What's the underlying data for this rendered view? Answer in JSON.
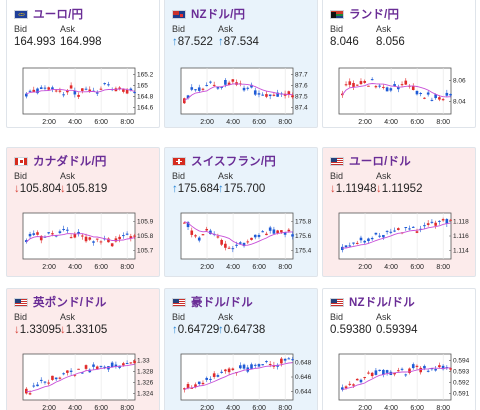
{
  "cards": [
    {
      "id": "eurjpy",
      "name": "ユーロ/円",
      "flag": "eu",
      "bid": "164.993",
      "ask": "164.998",
      "dir": "none",
      "bg": "neutral",
      "yticks": [
        "165.2",
        "165",
        "164.8",
        "164.6"
      ],
      "xticks": [
        "2:00",
        "4:00",
        "6:00",
        "8:00"
      ]
    },
    {
      "id": "nzdjpy",
      "name": "NZドル/円",
      "flag": "nz",
      "bid": "87.522",
      "ask": "87.534",
      "dir": "up",
      "bg": "up",
      "yticks": [
        "87.7",
        "87.6",
        "87.5",
        "87.4"
      ],
      "xticks": [
        "2:00",
        "4:00",
        "6:00",
        "8:00"
      ]
    },
    {
      "id": "zarjpy",
      "name": "ランド/円",
      "flag": "za",
      "bid": "8.046",
      "ask": "8.056",
      "dir": "none",
      "bg": "neutral",
      "yticks": [
        "8.06",
        "8.04"
      ],
      "xticks": [
        "2:00",
        "4:00",
        "6:00",
        "8:00"
      ]
    },
    {
      "id": "cadjpy",
      "name": "カナダドル/円",
      "flag": "ca",
      "bid": "105.804",
      "ask": "105.819",
      "dir": "down",
      "bg": "down",
      "yticks": [
        "105.9",
        "105.8",
        "105.7"
      ],
      "xticks": [
        "2:00",
        "4:00",
        "6:00",
        "8:00"
      ]
    },
    {
      "id": "chfjpy",
      "name": "スイスフラン/円",
      "flag": "ch",
      "bid": "175.684",
      "ask": "175.700",
      "dir": "up",
      "bg": "up",
      "yticks": [
        "175.8",
        "175.6",
        "175.4"
      ],
      "xticks": [
        "2:00",
        "4:00",
        "6:00",
        "8:00"
      ]
    },
    {
      "id": "eurusd",
      "name": "ユーロ/ドル",
      "flag": "us",
      "bid": "1.11948",
      "ask": "1.11952",
      "dir": "down",
      "bg": "down",
      "yticks": [
        "1.118",
        "1.116",
        "1.114"
      ],
      "xticks": [
        "2:00",
        "4:00",
        "6:00",
        "8:00"
      ]
    },
    {
      "id": "gbpusd",
      "name": "英ポンド/ドル",
      "flag": "us",
      "bid": "1.33095",
      "ask": "1.33105",
      "dir": "down",
      "bg": "down",
      "yticks": [
        "1.33",
        "1.328",
        "1.326",
        "1.324"
      ],
      "xticks": [
        "2:00",
        "4:00",
        "6:00",
        "8:00"
      ]
    },
    {
      "id": "audusd",
      "name": "豪ドル/ドル",
      "flag": "us",
      "bid": "0.64729",
      "ask": "0.64738",
      "dir": "up",
      "bg": "up",
      "yticks": [
        "0.648",
        "0.646",
        "0.644"
      ],
      "xticks": [
        "2:00",
        "4:00",
        "6:00",
        "8:00"
      ]
    },
    {
      "id": "nzdusd",
      "name": "NZドル/ドル",
      "flag": "us",
      "bid": "0.59380",
      "ask": "0.59394",
      "dir": "none",
      "bg": "neutral",
      "yticks": [
        "0.594",
        "0.593",
        "0.592",
        "0.591"
      ],
      "xticks": [
        "2:00",
        "4:00",
        "6:00",
        "8:00"
      ]
    }
  ],
  "labels": {
    "bid": "Bid",
    "ask": "Ask"
  },
  "colors": {
    "up": "#2a86d6",
    "down": "#d9453b",
    "ma": "#c84fd8",
    "brand": "#6a2d96",
    "bullish": "#1f5bd6",
    "bearish": "#e02b2b"
  }
}
